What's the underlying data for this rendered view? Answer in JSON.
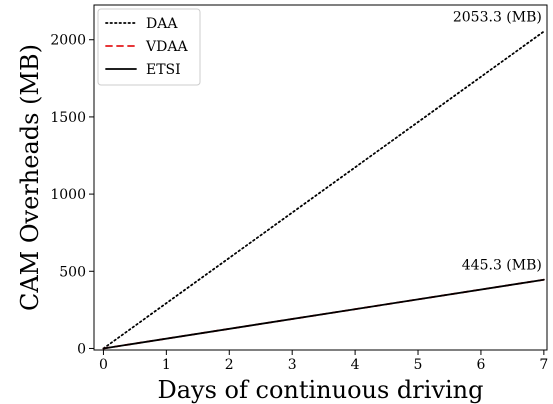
{
  "chart_data": {
    "type": "line",
    "title": "",
    "xlabel": "Days of continuous driving",
    "ylabel": "CAM Overheads (MB)",
    "xlim": [
      -0.15,
      7.05
    ],
    "ylim": [
      -10,
      2225
    ],
    "xticks": [
      0,
      1,
      2,
      3,
      4,
      5,
      6,
      7
    ],
    "yticks": [
      0,
      500,
      1000,
      1500,
      2000
    ],
    "grid": false,
    "legend_position": "top-left",
    "series": [
      {
        "name": "DAA",
        "style": "dotted",
        "color": "#000000",
        "x": [
          0,
          7
        ],
        "y": [
          0,
          2053.3
        ]
      },
      {
        "name": "VDAA",
        "style": "dashed",
        "color": "#e41a1c",
        "x": [
          0,
          7
        ],
        "y": [
          0,
          445.3
        ]
      },
      {
        "name": "ETSI",
        "style": "solid",
        "color": "#000000",
        "x": [
          0,
          7
        ],
        "y": [
          0,
          445.3
        ]
      }
    ],
    "annotations": [
      {
        "text": "2053.3 (MB)",
        "x": 7,
        "y": 2053.3
      },
      {
        "text": "445.3 (MB)",
        "x": 7,
        "y": 445.3
      }
    ]
  }
}
